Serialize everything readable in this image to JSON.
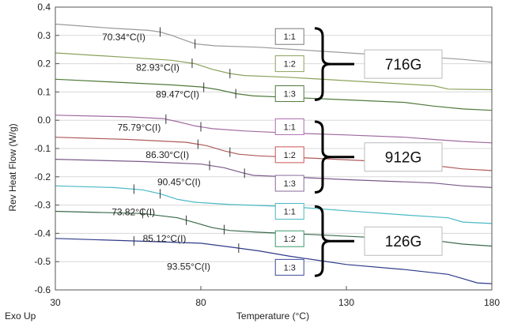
{
  "chart_data": {
    "type": "line",
    "title": "",
    "xlabel": "Temperature (°C)",
    "ylabel": "Rev Heat Flow (W/g)",
    "corner_label": "Exo Up",
    "xlim": [
      30,
      180
    ],
    "ylim": [
      -0.6,
      0.4
    ],
    "x_ticks": [
      30,
      80,
      130,
      180
    ],
    "y_ticks": [
      0.4,
      0.3,
      0.2,
      0.1,
      0.0,
      -0.1,
      -0.2,
      -0.3,
      -0.4,
      -0.5,
      -0.6
    ],
    "y_tick_labels": [
      "0.4",
      "0.3",
      "0.2",
      "0.1",
      "0.0",
      "-0.1",
      "-0.2",
      "-0.3",
      "-0.4",
      "-0.5",
      "-0.6"
    ],
    "grid": "horizontal",
    "series": [
      {
        "color": "#9a9a9a",
        "points": [
          [
            30,
            0.34
          ],
          [
            50,
            0.325
          ],
          [
            62,
            0.318
          ],
          [
            66,
            0.312
          ],
          [
            70,
            0.3
          ],
          [
            74,
            0.285
          ],
          [
            78,
            0.27
          ],
          [
            85,
            0.263
          ],
          [
            100,
            0.258
          ],
          [
            120,
            0.245
          ],
          [
            140,
            0.232
          ],
          [
            160,
            0.222
          ],
          [
            170,
            0.215
          ],
          [
            180,
            0.205
          ]
        ],
        "ticks": [
          66,
          78
        ]
      },
      {
        "color": "#8aa25a",
        "points": [
          [
            30,
            0.238
          ],
          [
            55,
            0.222
          ],
          [
            70,
            0.212
          ],
          [
            78,
            0.2
          ],
          [
            84,
            0.18
          ],
          [
            90,
            0.165
          ],
          [
            95,
            0.158
          ],
          [
            110,
            0.152
          ],
          [
            130,
            0.14
          ],
          [
            150,
            0.128
          ],
          [
            160,
            0.122
          ],
          [
            165,
            0.11
          ],
          [
            180,
            0.108
          ]
        ],
        "ticks": [
          77,
          90
        ]
      },
      {
        "color": "#4f7a3a",
        "points": [
          [
            30,
            0.145
          ],
          [
            50,
            0.135
          ],
          [
            70,
            0.125
          ],
          [
            80,
            0.118
          ],
          [
            86,
            0.108
          ],
          [
            92,
            0.094
          ],
          [
            98,
            0.086
          ],
          [
            110,
            0.081
          ],
          [
            130,
            0.072
          ],
          [
            150,
            0.063
          ],
          [
            160,
            0.05
          ],
          [
            170,
            0.04
          ],
          [
            180,
            0.035
          ]
        ],
        "ticks": [
          81,
          92
        ]
      },
      {
        "color": "#a06aa0",
        "points": [
          [
            30,
            0.018
          ],
          [
            55,
            0.012
          ],
          [
            67,
            0.006
          ],
          [
            72,
            -0.005
          ],
          [
            78,
            -0.02
          ],
          [
            84,
            -0.03
          ],
          [
            95,
            -0.038
          ],
          [
            110,
            -0.045
          ],
          [
            130,
            -0.052
          ],
          [
            150,
            -0.06
          ],
          [
            160,
            -0.068
          ],
          [
            170,
            -0.075
          ],
          [
            180,
            -0.08
          ]
        ],
        "ticks": [
          68,
          80
        ]
      },
      {
        "color": "#b05a5a",
        "points": [
          [
            30,
            -0.06
          ],
          [
            55,
            -0.068
          ],
          [
            75,
            -0.078
          ],
          [
            82,
            -0.09
          ],
          [
            88,
            -0.108
          ],
          [
            93,
            -0.12
          ],
          [
            100,
            -0.126
          ],
          [
            120,
            -0.135
          ],
          [
            140,
            -0.145
          ],
          [
            160,
            -0.16
          ],
          [
            170,
            -0.172
          ],
          [
            180,
            -0.178
          ]
        ],
        "ticks": [
          79,
          90
        ]
      },
      {
        "color": "#7a5a8a",
        "points": [
          [
            30,
            -0.138
          ],
          [
            60,
            -0.146
          ],
          [
            80,
            -0.155
          ],
          [
            88,
            -0.168
          ],
          [
            94,
            -0.185
          ],
          [
            98,
            -0.195
          ],
          [
            110,
            -0.2
          ],
          [
            130,
            -0.21
          ],
          [
            150,
            -0.218
          ],
          [
            160,
            -0.222
          ],
          [
            170,
            -0.232
          ],
          [
            180,
            -0.238
          ]
        ],
        "ticks": [
          83,
          95
        ]
      },
      {
        "color": "#4ab8c4",
        "points": [
          [
            30,
            -0.232
          ],
          [
            50,
            -0.238
          ],
          [
            60,
            -0.246
          ],
          [
            66,
            -0.26
          ],
          [
            72,
            -0.28
          ],
          [
            78,
            -0.29
          ],
          [
            90,
            -0.298
          ],
          [
            110,
            -0.305
          ],
          [
            130,
            -0.32
          ],
          [
            150,
            -0.335
          ],
          [
            165,
            -0.345
          ],
          [
            170,
            -0.36
          ],
          [
            180,
            -0.365
          ]
        ],
        "ticks": [
          57,
          66
        ]
      },
      {
        "color": "#3a6a4a",
        "points": [
          [
            30,
            -0.322
          ],
          [
            60,
            -0.33
          ],
          [
            72,
            -0.345
          ],
          [
            78,
            -0.362
          ],
          [
            84,
            -0.38
          ],
          [
            90,
            -0.39
          ],
          [
            100,
            -0.396
          ],
          [
            120,
            -0.405
          ],
          [
            140,
            -0.415
          ],
          [
            160,
            -0.425
          ],
          [
            170,
            -0.438
          ],
          [
            180,
            -0.445
          ]
        ],
        "ticks": [
          60,
          75,
          88
        ]
      },
      {
        "color": "#2e3a8a",
        "points": [
          [
            30,
            -0.418
          ],
          [
            60,
            -0.428
          ],
          [
            80,
            -0.435
          ],
          [
            90,
            -0.448
          ],
          [
            100,
            -0.462
          ],
          [
            110,
            -0.48
          ],
          [
            120,
            -0.495
          ],
          [
            130,
            -0.51
          ],
          [
            150,
            -0.528
          ],
          [
            165,
            -0.545
          ],
          [
            170,
            -0.56
          ],
          [
            175,
            -0.575
          ],
          [
            180,
            -0.578
          ]
        ],
        "ticks": [
          57,
          93
        ]
      }
    ],
    "annotations": [
      {
        "text": "70.34°C(I)",
        "x": 53.5,
        "y": 0.294
      },
      {
        "text": "82.93°C(I)",
        "x": 65.2,
        "y": 0.187
      },
      {
        "text": "89.47°C(I)",
        "x": 72.0,
        "y": 0.091
      },
      {
        "text": "75.79°C(I)",
        "x": 58.8,
        "y": -0.026
      },
      {
        "text": "86.30°C(I)",
        "x": 68.5,
        "y": -0.122
      },
      {
        "text": "90.45°C(I)",
        "x": 72.5,
        "y": -0.219
      },
      {
        "text": "73.82°C(I)",
        "x": 56.8,
        "y": -0.325
      },
      {
        "text": "85.12°C(I)",
        "x": 67.5,
        "y": -0.419
      },
      {
        "text": "93.55°C(I)",
        "x": 75.8,
        "y": -0.518
      }
    ],
    "ratio_labels": [
      {
        "text": "1:1",
        "x": 110.5,
        "y": 0.296,
        "color": "#7a7a7a"
      },
      {
        "text": "1:2",
        "x": 110.5,
        "y": 0.2,
        "color": "#8aa25a"
      },
      {
        "text": "1:3",
        "x": 110.5,
        "y": 0.094,
        "color": "#4f7a3a"
      },
      {
        "text": "1:1",
        "x": 110.5,
        "y": -0.023,
        "color": "#b06ab0"
      },
      {
        "text": "1:2",
        "x": 110.5,
        "y": -0.122,
        "color": "#cc5555"
      },
      {
        "text": "1:3",
        "x": 110.5,
        "y": -0.223,
        "color": "#8a6a9a"
      },
      {
        "text": "1:1",
        "x": 110.5,
        "y": -0.322,
        "color": "#4ab8c4"
      },
      {
        "text": "1:2",
        "x": 110.5,
        "y": -0.419,
        "color": "#3a9a6a"
      },
      {
        "text": "1:3",
        "x": 110.5,
        "y": -0.52,
        "color": "#3a4a9a"
      }
    ],
    "groups": [
      {
        "name": "716G",
        "top": 0.325,
        "bottom": 0.072
      },
      {
        "name": "912G",
        "top": -0.005,
        "bottom": -0.255
      },
      {
        "name": "126G",
        "top": -0.305,
        "bottom": -0.55
      }
    ]
  }
}
